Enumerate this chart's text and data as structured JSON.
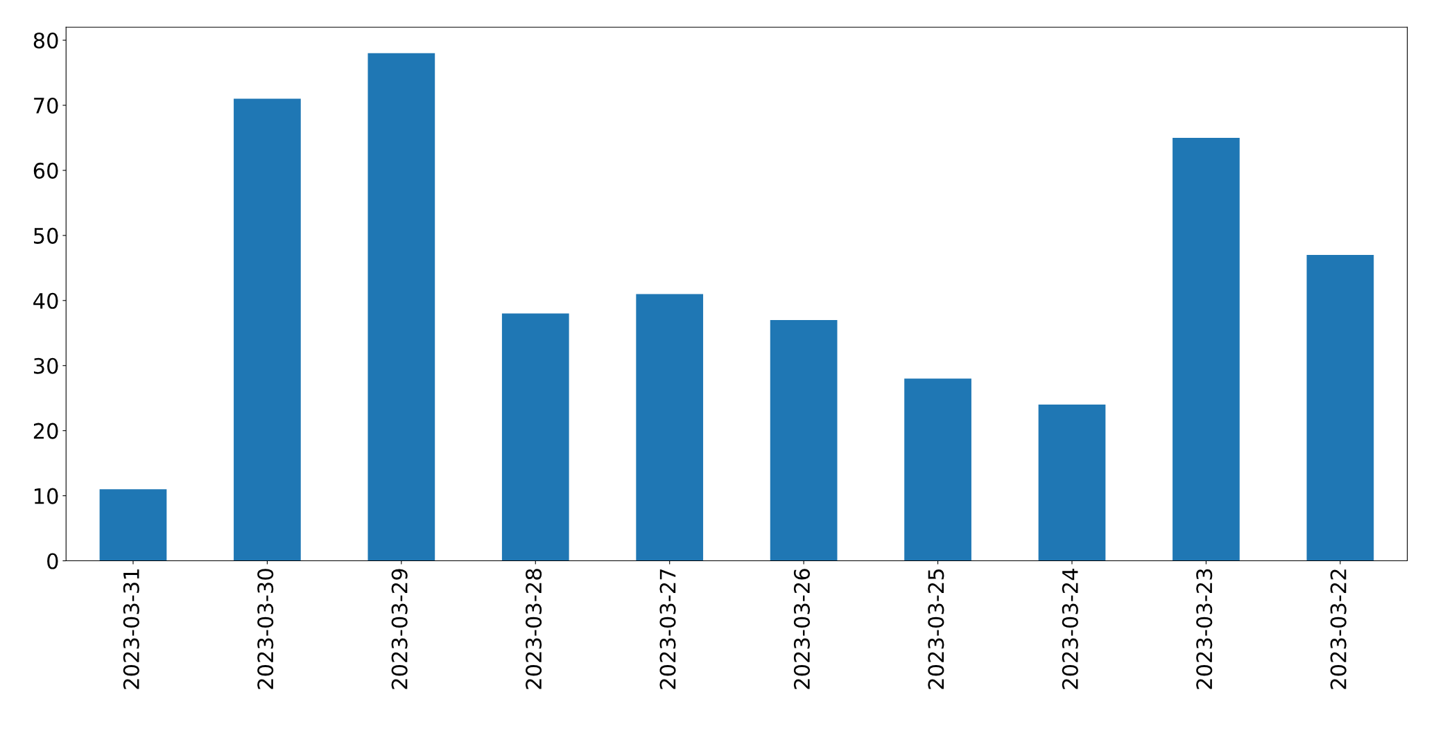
{
  "chart_data": {
    "type": "bar",
    "categories": [
      "2023-03-31",
      "2023-03-30",
      "2023-03-29",
      "2023-03-28",
      "2023-03-27",
      "2023-03-26",
      "2023-03-25",
      "2023-03-24",
      "2023-03-23",
      "2023-03-22"
    ],
    "values": [
      11,
      71,
      78,
      38,
      41,
      37,
      28,
      24,
      65,
      47
    ],
    "color": "#1f77b4",
    "ylim": [
      0,
      82
    ],
    "yticks": [
      0,
      10,
      20,
      30,
      40,
      50,
      60,
      70,
      80
    ],
    "grid": false,
    "legend": false
  }
}
